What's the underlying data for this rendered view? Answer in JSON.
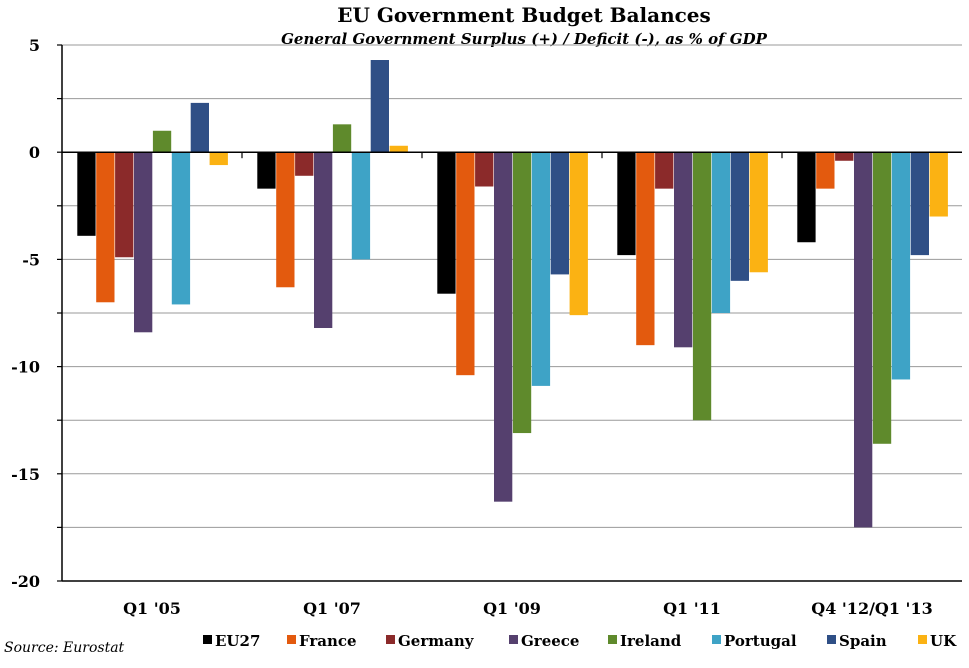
{
  "chart_data": {
    "type": "bar",
    "title": "EU Government Budget Balances",
    "subtitle": "General Government Surplus (+) / Deficit (-), as % of GDP",
    "source": "Source: Eurostat",
    "categories": [
      "Q1 '05",
      "Q1 '07",
      "Q1 '09",
      "Q1 '11",
      "Q4 '12/Q1 '13"
    ],
    "ylim": [
      -20,
      5
    ],
    "yticks": [
      5,
      0,
      -5,
      -10,
      -15,
      -20
    ],
    "grid": true,
    "legend_position": "bottom",
    "series": [
      {
        "name": "EU27",
        "color": "#000000",
        "values": [
          -3.9,
          -1.7,
          -6.6,
          -4.8,
          -4.2
        ]
      },
      {
        "name": "France",
        "color": "#e35a0e",
        "values": [
          -7.0,
          -6.3,
          -10.4,
          -9.0,
          -1.7
        ]
      },
      {
        "name": "Germany",
        "color": "#8b2a2a",
        "values": [
          -4.9,
          -1.1,
          -1.6,
          -1.7,
          -0.4
        ]
      },
      {
        "name": "Greece",
        "color": "#55406e",
        "values": [
          -8.4,
          -8.2,
          -16.3,
          -9.1,
          -17.5
        ]
      },
      {
        "name": "Ireland",
        "color": "#5f8a2c",
        "values": [
          1.0,
          1.3,
          -13.1,
          -12.5,
          -13.6
        ]
      },
      {
        "name": "Portugal",
        "color": "#3ea3c6",
        "values": [
          -7.1,
          -5.0,
          -10.9,
          -7.5,
          -10.6
        ]
      },
      {
        "name": "Spain",
        "color": "#2f4f86",
        "values": [
          2.3,
          4.3,
          -5.7,
          -6.0,
          -4.8
        ]
      },
      {
        "name": "UK",
        "color": "#fbb213",
        "values": [
          -0.6,
          0.3,
          -7.6,
          -5.6,
          -3.0
        ]
      }
    ]
  }
}
